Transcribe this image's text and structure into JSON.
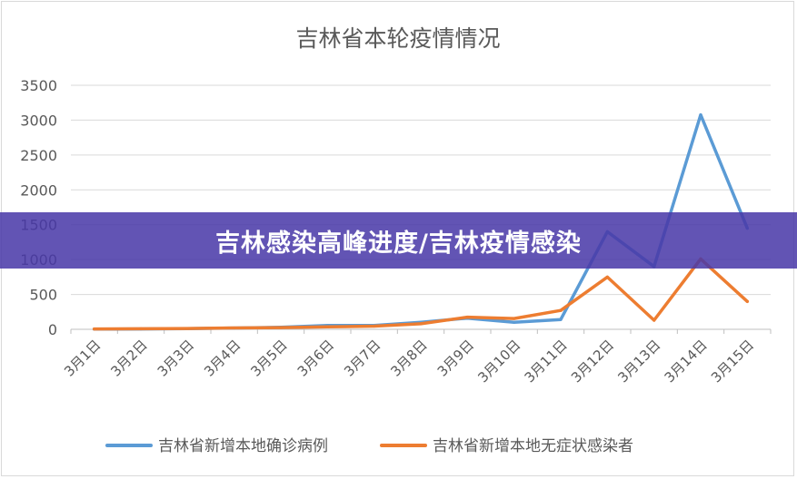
{
  "banner": {
    "text": "吉林感染高峰进度/吉林疫情感染"
  },
  "chart_data": {
    "type": "line",
    "title": "吉林省本轮疫情情况",
    "xlabel": "",
    "ylabel": "",
    "categories": [
      "3月1日",
      "3月2日",
      "3月3日",
      "3月4日",
      "3月5日",
      "3月6日",
      "3月7日",
      "3月8日",
      "3月9日",
      "3月10日",
      "3月11日",
      "3月12日",
      "3月13日",
      "3月14日",
      "3月15日"
    ],
    "ylim": [
      0,
      3500
    ],
    "yticks": [
      "0",
      "500",
      "1000",
      "1500",
      "2000",
      "2500",
      "3000",
      "3500"
    ],
    "grid": true,
    "legend_position": "bottom",
    "series": [
      {
        "name": "吉林省新增本地确诊病例",
        "color": "#5b9bd5",
        "values": [
          2,
          5,
          10,
          18,
          30,
          55,
          55,
          100,
          160,
          100,
          140,
          1400,
          900,
          3076,
          1450
        ]
      },
      {
        "name": "吉林省新增本地无症状感染者",
        "color": "#ed7d31",
        "values": [
          5,
          8,
          12,
          20,
          25,
          35,
          45,
          80,
          175,
          155,
          270,
          750,
          130,
          1010,
          400
        ]
      }
    ]
  }
}
